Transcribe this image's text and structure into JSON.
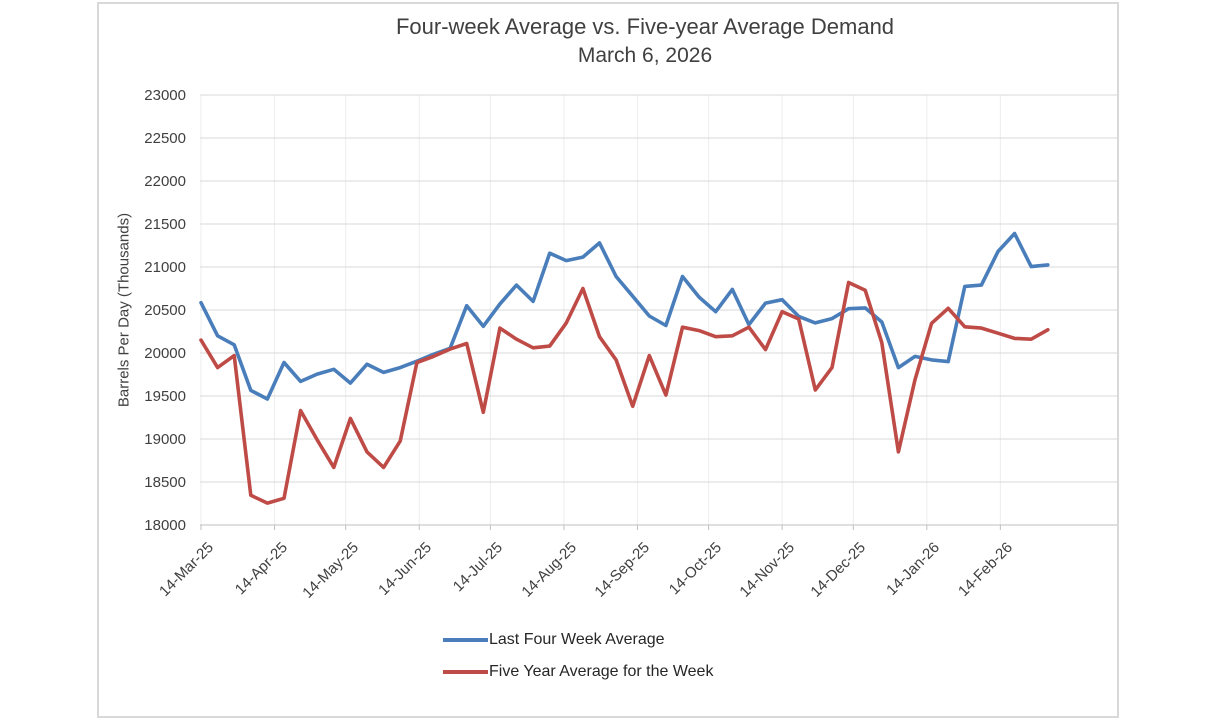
{
  "title": "Four-week Average vs. Five-year Average Demand",
  "subtitle": "March 6, 2026",
  "chart_data": {
    "type": "line",
    "title": "Four-week Average vs. Five-year Average Demand",
    "subtitle": "March 6, 2026",
    "xlabel": "",
    "ylabel": "Barrels Per Day (Thousands)",
    "ylim": [
      18000,
      23000
    ],
    "ytick_step": 500,
    "grid": "horizontal solid, faint vertical at month ticks",
    "legend_position": "bottom",
    "x_tick_labels": [
      "14-Mar-25",
      "14-Apr-25",
      "14-May-25",
      "14-Jun-25",
      "14-Jul-25",
      "14-Aug-25",
      "14-Sep-25",
      "14-Oct-25",
      "14-Nov-25",
      "14-Dec-25",
      "14-Jan-26",
      "14-Feb-26"
    ],
    "x_tick_days": [
      0,
      31,
      61,
      92,
      122,
      153,
      184,
      214,
      245,
      275,
      306,
      337
    ],
    "x": [
      "14-Mar-25",
      "21-Mar-25",
      "28-Mar-25",
      "4-Apr-25",
      "11-Apr-25",
      "18-Apr-25",
      "25-Apr-25",
      "2-May-25",
      "9-May-25",
      "16-May-25",
      "23-May-25",
      "30-May-25",
      "6-Jun-25",
      "13-Jun-25",
      "20-Jun-25",
      "27-Jun-25",
      "4-Jul-25",
      "11-Jul-25",
      "18-Jul-25",
      "25-Jul-25",
      "1-Aug-25",
      "8-Aug-25",
      "15-Aug-25",
      "22-Aug-25",
      "29-Aug-25",
      "5-Sep-25",
      "12-Sep-25",
      "19-Sep-25",
      "26-Sep-25",
      "3-Oct-25",
      "10-Oct-25",
      "17-Oct-25",
      "24-Oct-25",
      "31-Oct-25",
      "7-Nov-25",
      "14-Nov-25",
      "21-Nov-25",
      "28-Nov-25",
      "5-Dec-25",
      "12-Dec-25",
      "19-Dec-25",
      "26-Dec-25",
      "2-Jan-26",
      "9-Jan-26",
      "16-Jan-26",
      "23-Jan-26",
      "30-Jan-26",
      "6-Feb-26",
      "13-Feb-26",
      "20-Feb-26",
      "27-Feb-26",
      "6-Mar-26"
    ],
    "series": [
      {
        "name": "Last Four Week Average",
        "color": "#4a7ebb",
        "values": [
          20585,
          20200,
          20095,
          19565,
          19465,
          19890,
          19670,
          19755,
          19810,
          19650,
          19870,
          19775,
          19830,
          19905,
          19985,
          20055,
          20550,
          20310,
          20570,
          20790,
          20600,
          21160,
          21075,
          21115,
          21280,
          20890,
          20660,
          20430,
          20320,
          20890,
          20650,
          20480,
          20740,
          20330,
          20580,
          20620,
          20425,
          20350,
          20400,
          20515,
          20525,
          20360,
          19830,
          19960,
          19920,
          19900,
          20775,
          20790,
          21180,
          21390,
          21005,
          21025
        ]
      },
      {
        "name": "Five Year Average for the Week",
        "color": "#bf4b47",
        "values": [
          20150,
          19830,
          19970,
          18345,
          18255,
          18310,
          19330,
          18990,
          18670,
          19240,
          18850,
          18670,
          18975,
          19890,
          19960,
          20045,
          20110,
          19310,
          20290,
          20160,
          20060,
          20080,
          20350,
          20750,
          20190,
          19920,
          19380,
          19970,
          19510,
          20300,
          20260,
          20190,
          20200,
          20300,
          20040,
          20480,
          20395,
          19570,
          19830,
          20820,
          20730,
          20120,
          18850,
          19690,
          20345,
          20520,
          20305,
          20290,
          20230,
          20170,
          20160,
          20270
        ]
      }
    ]
  },
  "colors": {
    "grid_h": "#d9d9d9",
    "grid_v": "#ededed",
    "axis_line": "#bfbfbf",
    "text": "#404040",
    "card_border": "#d9d9d9"
  }
}
